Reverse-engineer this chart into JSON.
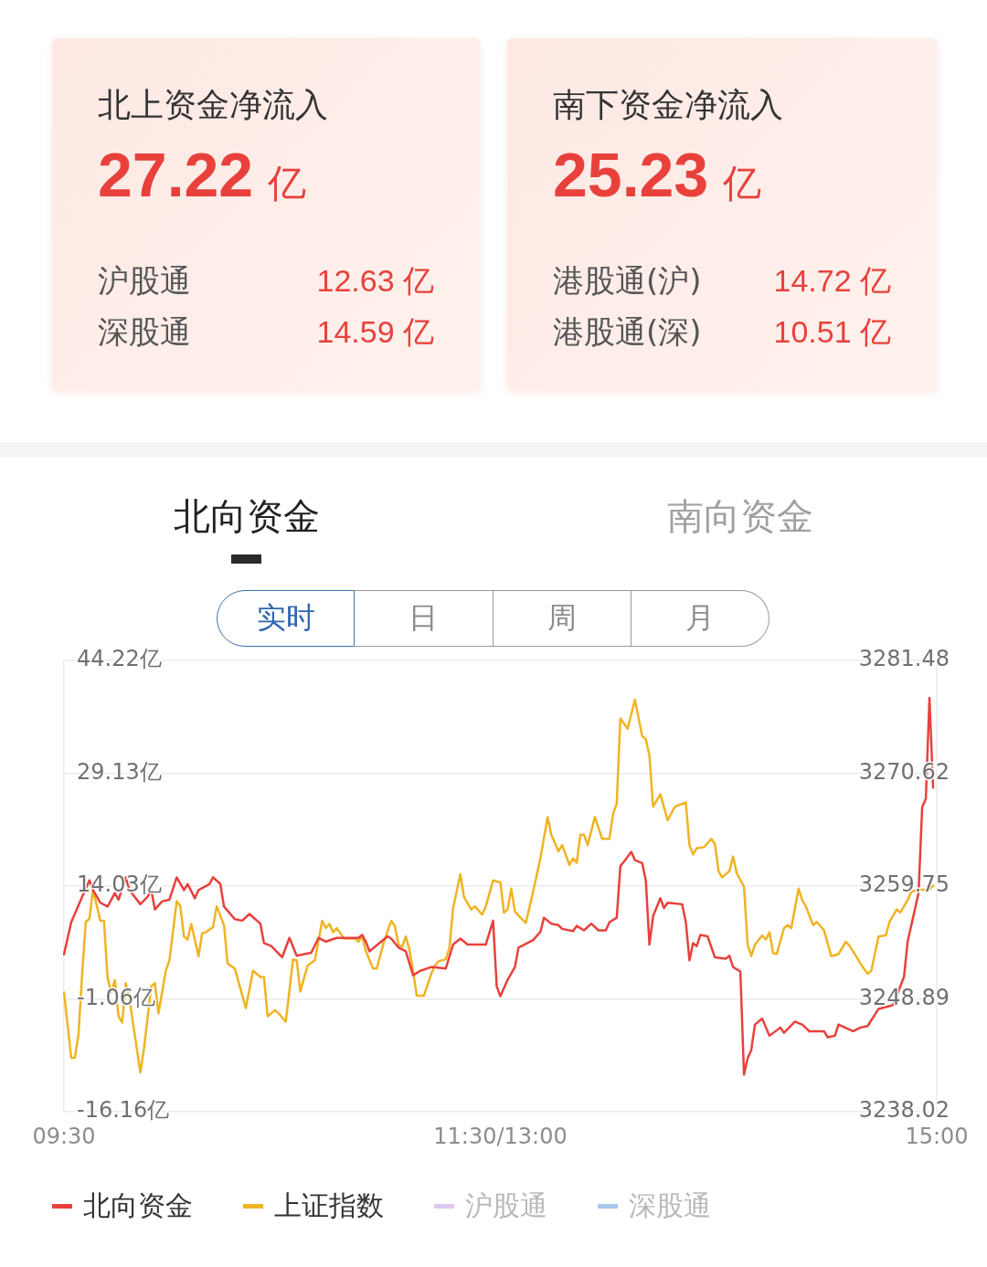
{
  "chart_data": [
    {
      "type": "other",
      "title": "北上资金净流入",
      "subtitle": "27.22 亿",
      "annotations": [
        "沪股通",
        "12.63 亿",
        "深股通",
        "14.59 亿"
      ]
    },
    {
      "type": "other",
      "title": "南下资金净流入",
      "subtitle": "25.23 亿",
      "annotations": [
        "港股通(沪)",
        "14.72 亿",
        "港股通(深)",
        "10.51 亿"
      ]
    },
    {
      "type": "line",
      "annotations": [
        "北向资金",
        "南向资金",
        "实时",
        "日",
        "周",
        "月"
      ],
      "categories": [
        "09:30",
        null,
        null,
        null,
        null,
        null,
        null,
        null,
        null,
        null,
        null,
        null,
        null,
        null,
        null,
        null,
        null,
        null,
        null,
        null,
        null,
        null,
        null,
        null,
        null,
        null,
        null,
        null,
        null,
        null,
        null,
        null,
        null,
        null,
        null,
        null,
        null,
        null,
        null,
        null,
        null,
        null,
        null,
        null,
        null,
        null,
        null,
        null,
        null,
        null,
        null,
        null,
        null,
        null,
        null,
        null,
        null,
        null,
        null,
        null,
        null,
        null,
        null,
        null,
        null,
        null,
        null,
        null,
        null,
        null,
        null,
        null,
        null,
        null,
        null,
        null,
        null,
        null,
        null,
        null,
        null,
        null,
        null,
        null,
        null,
        null,
        null,
        null,
        null,
        null,
        null,
        null,
        null,
        null,
        null,
        null,
        null,
        null,
        null,
        null,
        null,
        null,
        null,
        null,
        null,
        null,
        null,
        null,
        null,
        null,
        null,
        null,
        null,
        null,
        null,
        null,
        null,
        null,
        null,
        null,
        "11:30/13:00",
        null,
        null,
        null,
        null,
        null,
        null,
        null,
        null,
        null,
        null,
        null,
        null,
        null,
        null,
        null,
        null,
        null,
        null,
        null,
        null,
        null,
        null,
        null,
        null,
        null,
        null,
        null,
        null,
        null,
        null,
        null,
        null,
        null,
        null,
        null,
        null,
        null,
        null,
        null,
        null,
        null,
        null,
        null,
        null,
        null,
        null,
        null,
        null,
        null,
        null,
        null,
        null,
        null,
        null,
        null,
        null,
        null,
        null,
        null,
        null,
        null,
        null,
        null,
        null,
        null,
        null,
        null,
        null,
        null,
        null,
        null,
        null,
        null,
        null,
        null,
        null,
        null,
        null,
        null,
        null,
        null,
        null,
        null,
        null,
        null,
        null,
        null,
        null,
        null,
        null,
        null,
        null,
        null,
        null,
        null,
        null,
        null,
        null,
        null,
        null,
        null,
        null,
        null,
        null,
        null,
        null,
        null,
        null,
        null,
        null,
        null,
        null,
        null,
        null,
        null,
        null,
        null,
        null,
        null,
        "15:00"
      ],
      "ylim": [
        -16.16,
        44.22
      ],
      "yticks": [
        {
          "value": -16.16,
          "label": "-16.16亿"
        },
        {
          "value": -1.06,
          "label": "-1.06亿"
        },
        {
          "value": 14.03,
          "label": "14.03亿"
        },
        {
          "value": 29.13,
          "label": "29.13亿"
        },
        {
          "value": 44.22,
          "label": "44.22亿"
        }
      ],
      "y2lim": [
        3238.02,
        3281.48
      ],
      "y2ticks": [
        3238.02,
        3248.89,
        3259.75,
        3270.62,
        3281.48
      ],
      "grid": "y",
      "legend": "bottom",
      "series": [
        {
          "name": "北向资金",
          "color": "#e8413c",
          "values": [
            4.9,
            null,
            9.2,
            null,
            null,
            12.6,
            null,
            14.8,
            13.5,
            null,
            11.8,
            null,
            11.3,
            null,
            13.1,
            12.2,
            null,
            15.2,
            13.5,
            null,
            null,
            11.6,
            null,
            12.6,
            13.5,
            10.9,
            null,
            12.0,
            null,
            12.2,
            null,
            15.2,
            null,
            13.5,
            14.3,
            null,
            12.4,
            13.5,
            null,
            null,
            14.3,
            15.2,
            null,
            14.3,
            11.3,
            null,
            null,
            9.6,
            null,
            9.4,
            null,
            10.3,
            null,
            null,
            9.0,
            6.4,
            null,
            6.0,
            null,
            null,
            4.5,
            null,
            7.1,
            null,
            4.7,
            null,
            null,
            null,
            5.1,
            null,
            7.1,
            null,
            6.6,
            null,
            null,
            7.1,
            null,
            null,
            null,
            null,
            null,
            7.1,
            7.5,
            6.6,
            5.3,
            null,
            null,
            null,
            null,
            7.3,
            7.0,
            null,
            5.8,
            null,
            5.3,
            null,
            2.1,
            null,
            2.7,
            null,
            null,
            3.2,
            null,
            null,
            null,
            3.0,
            null,
            6.2,
            null,
            7.0,
            null,
            6.2,
            null,
            null,
            null,
            null,
            6.2,
            null,
            9.4,
            0.6,
            -0.7,
            null,
            1.5,
            null,
            3.2,
            5.8,
            null,
            null,
            null,
            6.8,
            null,
            7.9,
            9.8,
            null,
            9.0,
            null,
            8.8,
            8.3,
            null,
            null,
            8.0,
            8.7,
            null,
            8.1,
            null,
            9.0,
            null,
            8.1,
            null,
            8.1,
            9.2,
            null,
            9.8,
            16.7,
            17.3,
            null,
            18.6,
            17.5,
            null,
            17.1,
            14.8,
            6.2,
            10.0,
            null,
            12.4,
            11.1,
            11.8,
            null,
            null,
            null,
            11.6,
            9.2,
            4.1,
            6.4,
            6.0,
            7.5,
            null,
            7.3,
            null,
            4.5,
            null,
            null,
            4.3,
            4.7,
            3.2,
            null,
            2.6,
            -11.2,
            -9.0,
            -7.9,
            -4.5,
            null,
            -3.7,
            null,
            -6.0,
            null,
            null,
            -4.9,
            -5.6,
            null,
            null,
            -4.1,
            null,
            -4.5,
            null,
            -5.4,
            null,
            null,
            null,
            -5.4,
            -6.2,
            null,
            -6.0,
            -4.5,
            null,
            null,
            null,
            -5.4,
            null,
            -4.9,
            null,
            -4.7,
            null,
            null,
            -2.4,
            null,
            null,
            null,
            -1.9,
            null,
            null,
            1.9,
            6.6,
            null,
            null,
            13.1,
            24.6,
            25.7,
            39.2,
            27.2,
            null
          ]
        },
        {
          "name": "上证指数",
          "color": "#f0b323",
          "axis": "y2",
          "values": [
            3249.5,
            null,
            3243.2,
            3243.2,
            3245.5,
            3251.3,
            3256.3,
            3256.6,
            3259.4,
            null,
            3256.4,
            3256.4,
            3250.9,
            3249.5,
            3250.7,
            3247.2,
            3246.6,
            3250.4,
            3248.9,
            null,
            null,
            3241.8,
            3244.1,
            null,
            3250.1,
            3250.4,
            3247.5,
            null,
            3251.6,
            3252.6,
            null,
            3258.3,
            3257.8,
            3254.9,
            3254.6,
            3256.1,
            null,
            3253.0,
            3255.2,
            3255.3,
            null,
            3255.8,
            3257.8,
            null,
            3256.0,
            3252.3,
            null,
            3251.8,
            null,
            null,
            3248.0,
            null,
            3251.6,
            null,
            3251.0,
            3251.0,
            3247.2,
            null,
            3247.8,
            3247.5,
            null,
            3246.7,
            null,
            3252.7,
            3252.6,
            3249.6,
            null,
            3252.1,
            null,
            3252.6,
            null,
            3256.4,
            3255.7,
            3256.1,
            3255.3,
            3255.7,
            null,
            3254.7,
            null,
            null,
            3254.7,
            3254.4,
            3254.9,
            3253.5,
            null,
            3251.8,
            3251.8,
            null,
            3254.4,
            null,
            3256.4,
            3255.9,
            3254.1,
            3253.9,
            3254.9,
            3253.6,
            3251.6,
            3249.2,
            null,
            3249.2,
            null,
            3251.3,
            3252.1,
            3252.5,
            null,
            3252.7,
            3253.8,
            3257.6,
            null,
            3260.9,
            3258.7,
            null,
            3257.5,
            3257.8,
            null,
            3257.0,
            3257.8,
            null,
            3260.3,
            null,
            3260.1,
            3257.2,
            3257.5,
            3259.5,
            3257.3,
            3256.9,
            null,
            3256.2,
            null,
            3259.2,
            null,
            3262.4,
            null,
            3266.4,
            3264.7,
            null,
            3263.1,
            3263.7,
            null,
            3261.8,
            3262.4,
            3262.0,
            3264.7,
            3264.7,
            3263.7,
            null,
            3266.4,
            null,
            3264.3,
            null,
            3264.3,
            3266.7,
            3267.7,
            3275.9,
            null,
            3274.9,
            null,
            3277.7,
            null,
            3274.2,
            3273.9,
            3272.3,
            3267.4,
            null,
            3268.6,
            null,
            3266.1,
            null,
            3267.4,
            null,
            null,
            3267.8,
            3263.7,
            3262.8,
            3263.4,
            null,
            3263.5,
            null,
            3264.3,
            3263.8,
            3261.2,
            3260.6,
            null,
            3261.2,
            3262.6,
            3261.0,
            null,
            3259.7,
            3254.1,
            3253.0,
            3254.1,
            null,
            3255.0,
            3254.6,
            3255.3,
            3253.3,
            3253.2,
            null,
            3255.7,
            3256.0,
            3255.7,
            null,
            3259.5,
            3258.4,
            3257.8,
            null,
            3256.0,
            3256.3,
            null,
            3255.5,
            null,
            3253.0,
            null,
            3253.2,
            null,
            3254.4,
            3254.0,
            null,
            3252.9,
            3252.3,
            null,
            3251.3,
            3251.6,
            null,
            3254.9,
            null,
            3255.0,
            3256.3,
            null,
            3257.5,
            3257.2,
            null,
            3258.4,
            3259.2,
            null,
            3259.4,
            null,
            null,
            3259.4,
            3259.8,
            null
          ]
        },
        {
          "name": "沪股通",
          "color": "#dcc8f0",
          "values": [
            null,
            null,
            null,
            null,
            null,
            null,
            null,
            null,
            null,
            null,
            null,
            null,
            null,
            null,
            null,
            null,
            null,
            null,
            null,
            null,
            null,
            null,
            null,
            null,
            null,
            null,
            null,
            null,
            null,
            null,
            null,
            null,
            null,
            null,
            null,
            null,
            null,
            null,
            null,
            null,
            null,
            null,
            null,
            null,
            null,
            null,
            null,
            null,
            null,
            null,
            null,
            null,
            null,
            null,
            null,
            null,
            null,
            null,
            null,
            null,
            null,
            null,
            null,
            null,
            null,
            null,
            null,
            null,
            null,
            null,
            null,
            null,
            null,
            null,
            null,
            null,
            null,
            null,
            null,
            null,
            null,
            null,
            null,
            null,
            null,
            null,
            null,
            null,
            null,
            null,
            null,
            null,
            null,
            null,
            null,
            null,
            null,
            null,
            null,
            null,
            null,
            null,
            null,
            null,
            null,
            null,
            null,
            null,
            null,
            null,
            null,
            null,
            null,
            null,
            null,
            null,
            null,
            null,
            null,
            null,
            null,
            null,
            null,
            null,
            null,
            null,
            null,
            null,
            null,
            null,
            null,
            null,
            null,
            null,
            null,
            null,
            null,
            null,
            null,
            null,
            null,
            null,
            null,
            null,
            null,
            null,
            null,
            null,
            null,
            null,
            null,
            null,
            null,
            null,
            null,
            null,
            null,
            null,
            null,
            null,
            null,
            null,
            null,
            null,
            null,
            null,
            null,
            null,
            null,
            null,
            null,
            null,
            null,
            null,
            null,
            null,
            null,
            null,
            null,
            null,
            null,
            null,
            null,
            null,
            null,
            null,
            null,
            null,
            null,
            null,
            null,
            null,
            null,
            null,
            null,
            null,
            null,
            null,
            null,
            null,
            null,
            null,
            null,
            null,
            null,
            null,
            null,
            null,
            null,
            null,
            null,
            null,
            null,
            null,
            null,
            null,
            null,
            null,
            null,
            null,
            null,
            null,
            null,
            null,
            null,
            null,
            null,
            null,
            null,
            null,
            null,
            null,
            null,
            null,
            null,
            null,
            null,
            null,
            null,
            null,
            null
          ]
        },
        {
          "name": "深股通",
          "color": "#a9c7ee",
          "values": [
            null,
            null,
            null,
            null,
            null,
            null,
            null,
            null,
            null,
            null,
            null,
            null,
            null,
            null,
            null,
            null,
            null,
            null,
            null,
            null,
            null,
            null,
            null,
            null,
            null,
            null,
            null,
            null,
            null,
            null,
            null,
            null,
            null,
            null,
            null,
            null,
            null,
            null,
            null,
            null,
            null,
            null,
            null,
            null,
            null,
            null,
            null,
            null,
            null,
            null,
            null,
            null,
            null,
            null,
            null,
            null,
            null,
            null,
            null,
            null,
            null,
            null,
            null,
            null,
            null,
            null,
            null,
            null,
            null,
            null,
            null,
            null,
            null,
            null,
            null,
            null,
            null,
            null,
            null,
            null,
            null,
            null,
            null,
            null,
            null,
            null,
            null,
            null,
            null,
            null,
            null,
            null,
            null,
            null,
            null,
            null,
            null,
            null,
            null,
            null,
            null,
            null,
            null,
            null,
            null,
            null,
            null,
            null,
            null,
            null,
            null,
            null,
            null,
            null,
            null,
            null,
            null,
            null,
            null,
            null,
            null,
            null,
            null,
            null,
            null,
            null,
            null,
            null,
            null,
            null,
            null,
            null,
            null,
            null,
            null,
            null,
            null,
            null,
            null,
            null,
            null,
            null,
            null,
            null,
            null,
            null,
            null,
            null,
            null,
            null,
            null,
            null,
            null,
            null,
            null,
            null,
            null,
            null,
            null,
            null,
            null,
            null,
            null,
            null,
            null,
            null,
            null,
            null,
            null,
            null,
            null,
            null,
            null,
            null,
            null,
            null,
            null,
            null,
            null,
            null,
            null,
            null,
            null,
            null,
            null,
            null,
            null,
            null,
            null,
            null,
            null,
            null,
            null,
            null,
            null,
            null,
            null,
            null,
            null,
            null,
            null,
            null,
            null,
            null,
            null,
            null,
            null,
            null,
            null,
            null,
            null,
            null,
            null,
            null,
            null,
            null,
            null,
            null,
            null,
            null,
            null,
            null,
            null,
            null,
            null,
            null,
            null,
            null,
            null,
            null,
            null,
            null,
            null,
            null,
            null,
            null,
            null,
            null,
            null,
            null,
            null
          ]
        }
      ]
    }
  ]
}
